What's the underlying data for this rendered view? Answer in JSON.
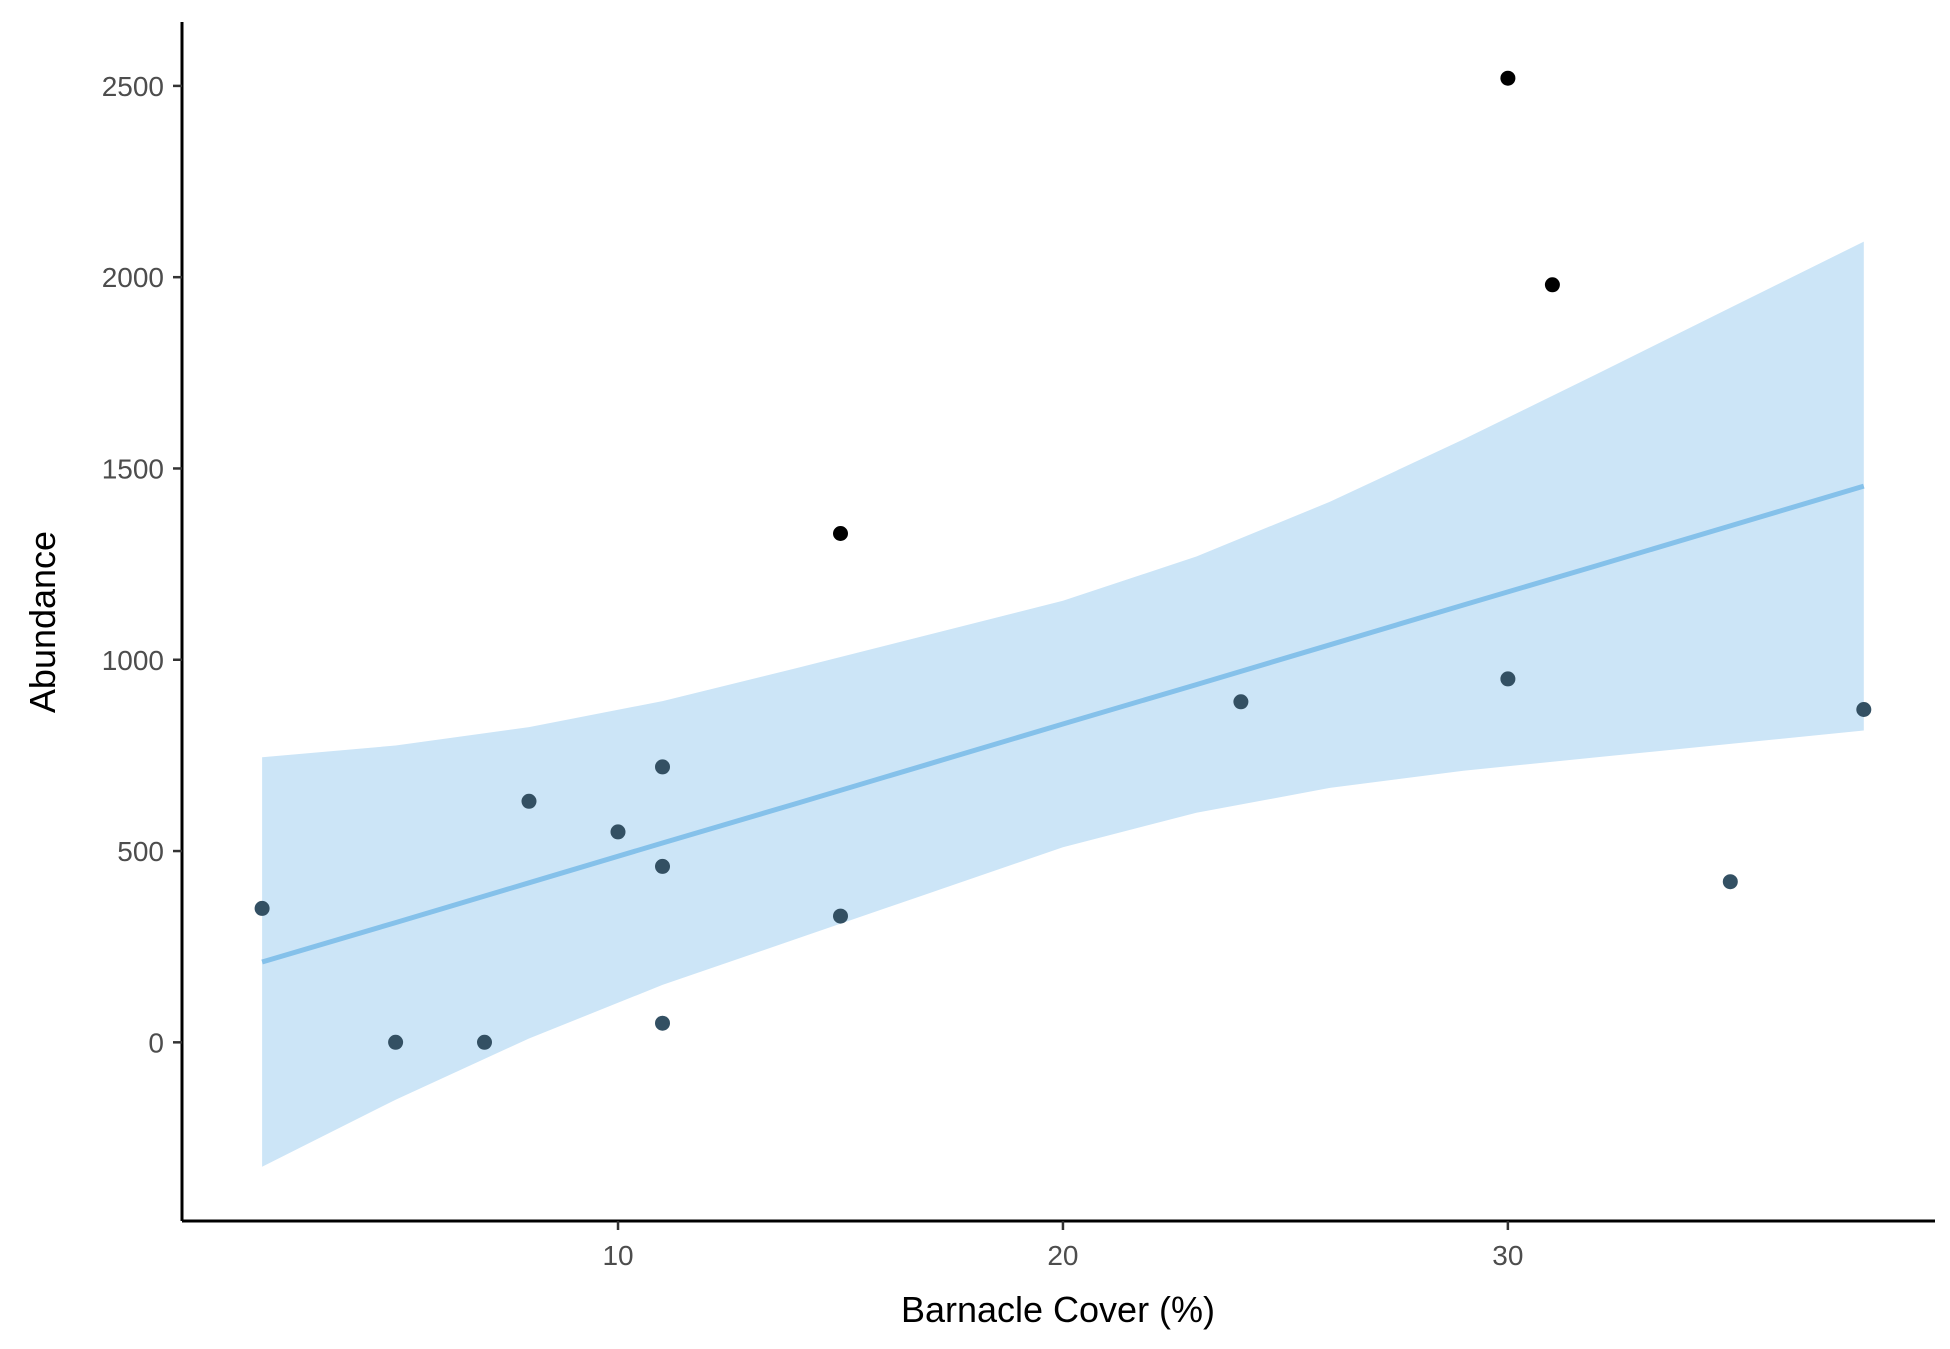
{
  "chart_data": {
    "type": "scatter",
    "title": "",
    "xlabel": "Barnacle Cover (%)",
    "ylabel": "Abundance",
    "xlim": [
      0.2,
      39.6
    ],
    "ylim": [
      -467,
      2667
    ],
    "xticks": [
      10,
      20,
      30
    ],
    "yticks": [
      0,
      500,
      1000,
      1500,
      2000,
      2500
    ],
    "grid": false,
    "legend": "none",
    "points": [
      {
        "x": 2,
        "y": 350
      },
      {
        "x": 5,
        "y": 0
      },
      {
        "x": 7,
        "y": 0
      },
      {
        "x": 8,
        "y": 630
      },
      {
        "x": 10,
        "y": 550
      },
      {
        "x": 11,
        "y": 720
      },
      {
        "x": 11,
        "y": 460
      },
      {
        "x": 11,
        "y": 50
      },
      {
        "x": 15,
        "y": 1330
      },
      {
        "x": 15,
        "y": 330
      },
      {
        "x": 24,
        "y": 890
      },
      {
        "x": 30,
        "y": 2520
      },
      {
        "x": 30,
        "y": 950
      },
      {
        "x": 31,
        "y": 1980
      },
      {
        "x": 35,
        "y": 420
      },
      {
        "x": 38,
        "y": 870
      }
    ],
    "point_colors": {
      "low": "#335063",
      "high": "#000000",
      "threshold": 1000
    },
    "fit": {
      "method": "linear",
      "line_color": "#85c1ea",
      "ribbon_color": "#cce5f7",
      "x": [
        2,
        5,
        8,
        11,
        14,
        17,
        20,
        23,
        26,
        29,
        32,
        35,
        38
      ],
      "y": [
        210,
        313,
        417,
        521,
        624,
        728,
        832,
        935,
        1039,
        1143,
        1246,
        1350,
        1454
      ],
      "lower": [
        -325,
        -150,
        10,
        150,
        270,
        390,
        510,
        600,
        665,
        710,
        745,
        780,
        815
      ],
      "upper": [
        745,
        776,
        824,
        892,
        978,
        1066,
        1154,
        1270,
        1413,
        1576,
        1747,
        1920,
        2093
      ]
    }
  }
}
